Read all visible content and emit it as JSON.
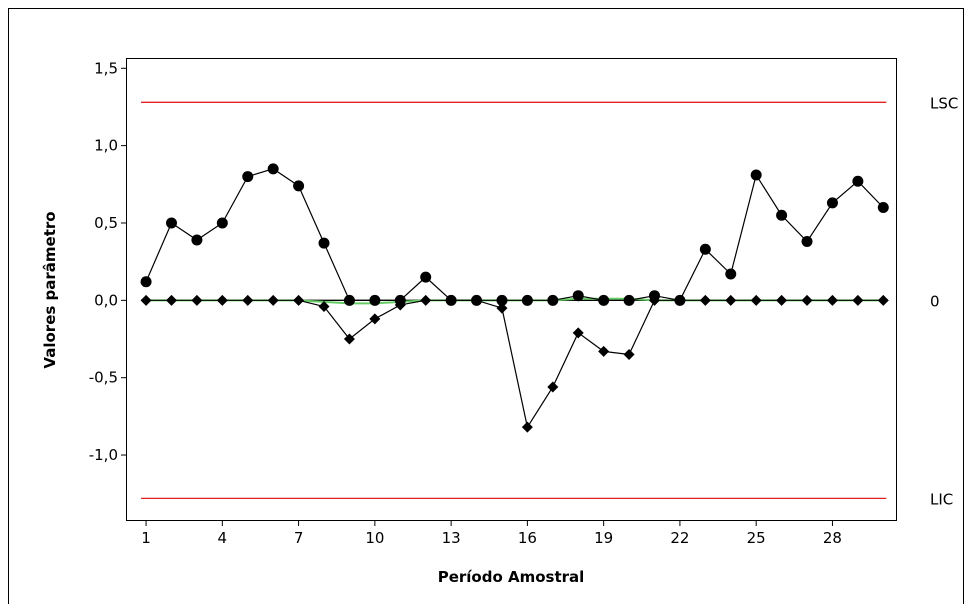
{
  "chart_data": {
    "type": "line",
    "xlabel": "Período Amostral",
    "ylabel": "Valores parâmetro",
    "x": [
      1,
      2,
      3,
      4,
      5,
      6,
      7,
      8,
      9,
      10,
      11,
      12,
      13,
      14,
      15,
      16,
      17,
      18,
      19,
      20,
      21,
      22,
      23,
      24,
      25,
      26,
      27,
      28,
      29,
      30
    ],
    "x_ticks": [
      1,
      4,
      7,
      10,
      13,
      16,
      19,
      22,
      25,
      28
    ],
    "x_tick_labels": [
      "1",
      "4",
      "7",
      "10",
      "13",
      "16",
      "19",
      "22",
      "25",
      "28"
    ],
    "xlim": [
      0.25,
      30.5
    ],
    "ylim": [
      -1.42,
      1.56
    ],
    "y_ticks": [
      -1.0,
      -0.5,
      0.0,
      0.5,
      1.0,
      1.5
    ],
    "y_tick_labels": [
      "-1,0",
      "-0,5",
      "0,0",
      "0,5",
      "1,0",
      "1,5"
    ],
    "grid": false,
    "series": [
      {
        "marker": "circle",
        "color": "#000000",
        "values": [
          0.12,
          0.5,
          0.39,
          0.5,
          0.8,
          0.85,
          0.74,
          0.37,
          0.0,
          0.0,
          0.0,
          0.15,
          0.0,
          0.0,
          0.0,
          0.0,
          0.0,
          0.03,
          0.0,
          0.0,
          0.03,
          0.0,
          0.33,
          0.17,
          0.81,
          0.55,
          0.38,
          0.63,
          0.77,
          0.6
        ]
      },
      {
        "marker": "diamond",
        "color": "#000000",
        "values": [
          0.0,
          0.0,
          0.0,
          0.0,
          0.0,
          0.0,
          0.0,
          -0.04,
          -0.25,
          -0.12,
          -0.03,
          0.0,
          0.0,
          0.0,
          -0.05,
          -0.82,
          -0.56,
          -0.21,
          -0.33,
          -0.35,
          0.0,
          0.0,
          0.0,
          0.0,
          0.0,
          0.0,
          0.0,
          0.0,
          0.0,
          0.0
        ]
      }
    ],
    "center_curve": {
      "color": "#66cc66",
      "values": [
        0.0,
        0.0,
        0.0,
        0.0,
        0.0,
        0.0,
        0.0,
        -0.01,
        -0.02,
        -0.02,
        -0.01,
        0.0,
        0.0,
        0.0,
        0.0,
        0.0,
        0.0,
        0.01,
        0.01,
        0.01,
        0.0,
        0.0,
        0.0,
        0.0,
        0.0,
        0.0,
        0.0,
        0.0,
        0.0,
        0.0
      ]
    },
    "reference_lines": [
      {
        "label": "LSC",
        "value": 1.28,
        "color": "#e02020"
      },
      {
        "label": "0",
        "value": 0.0,
        "color": "#000000"
      },
      {
        "label": "LIC",
        "value": -1.28,
        "color": "#e02020"
      }
    ]
  }
}
